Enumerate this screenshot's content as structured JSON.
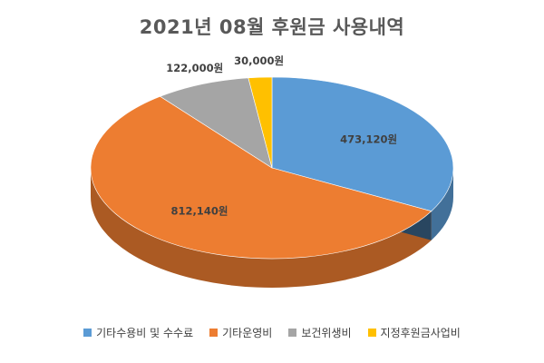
{
  "chart_data": {
    "type": "pie",
    "title": "2021년 08월 후원금 사용내역",
    "series": [
      {
        "name": "기타수용비 및 수수료",
        "value": 473120,
        "label": "473,120원",
        "color": "#5B9BD5"
      },
      {
        "name": "기타운영비",
        "value": 812140,
        "label": "812,140원",
        "color": "#ED7D31"
      },
      {
        "name": "보건위생비",
        "value": 122000,
        "label": "122,000원",
        "color": "#A5A5A5"
      },
      {
        "name": "지정후원금사업비",
        "value": 30000,
        "label": "30,000원",
        "color": "#FFC000"
      }
    ],
    "legend_position": "bottom",
    "style": "3d-pie"
  }
}
